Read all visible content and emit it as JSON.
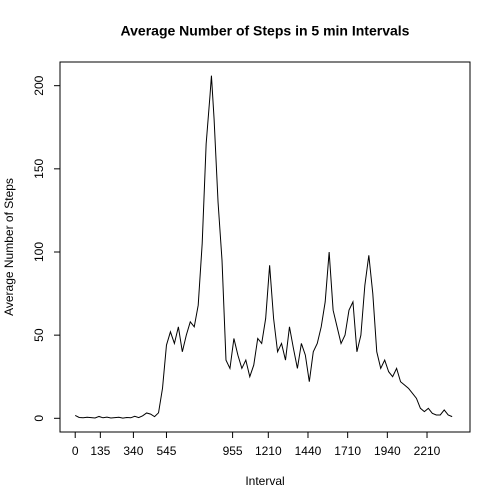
{
  "chart_data": {
    "type": "line",
    "title": "Average Number of Steps in 5 min Intervals",
    "x_label": "Interval",
    "y_label": "Average Number of Steps",
    "x": [
      0,
      3,
      6,
      9,
      12,
      15,
      18,
      21,
      24,
      27,
      30,
      33,
      36,
      39,
      42,
      45,
      48,
      51,
      54,
      57,
      60,
      63,
      66,
      69,
      72,
      75,
      78,
      81,
      84,
      87,
      90,
      93,
      96,
      99,
      102,
      103,
      105,
      108,
      111,
      114,
      117,
      120,
      123,
      126,
      129,
      132,
      135,
      138,
      141,
      144,
      147,
      150,
      153,
      156,
      159,
      162,
      165,
      168,
      171,
      174,
      177,
      180,
      183,
      186,
      189,
      192,
      195,
      198,
      201,
      204,
      207,
      210,
      213,
      216,
      219,
      222,
      225,
      228,
      231,
      234,
      237,
      240,
      243,
      246,
      249,
      252,
      255,
      258,
      261,
      264,
      267,
      270,
      273,
      276,
      279,
      282,
      285
    ],
    "series": [
      {
        "name": "Average Number of Steps",
        "color": "#000000",
        "values": [
          1.7,
          0.5,
          0.3,
          0.6,
          0.4,
          0.2,
          1.1,
          0.3,
          0.7,
          0.2,
          0.4,
          0.6,
          0.1,
          0.5,
          0.3,
          1.2,
          0.4,
          1.5,
          3.2,
          2.5,
          1.0,
          3.3,
          18,
          44,
          52,
          45,
          55,
          40,
          50,
          58,
          55,
          68,
          105,
          165,
          195,
          206,
          180,
          130,
          95,
          35,
          30,
          48,
          38,
          30,
          35,
          25,
          32,
          48,
          45,
          60,
          92,
          60,
          40,
          45,
          35,
          55,
          42,
          30,
          45,
          38,
          22,
          40,
          45,
          55,
          70,
          100,
          65,
          55,
          45,
          50,
          65,
          70,
          40,
          50,
          80,
          98,
          75,
          40,
          30,
          35,
          28,
          25,
          30,
          22,
          20,
          18,
          15,
          12,
          6,
          4,
          6,
          3,
          2,
          2,
          5,
          2,
          1
        ]
      }
    ],
    "xlim": [
      -11.5,
      298.5
    ],
    "xticks": [
      {
        "value": 0,
        "label": "0"
      },
      {
        "value": 19,
        "label": "135"
      },
      {
        "value": 44,
        "label": "340"
      },
      {
        "value": 69,
        "label": "545"
      },
      {
        "value": 119,
        "label": "955"
      },
      {
        "value": 146,
        "label": "1210"
      },
      {
        "value": 176,
        "label": "1440"
      },
      {
        "value": 206,
        "label": "1710"
      },
      {
        "value": 236,
        "label": "1940"
      },
      {
        "value": 266,
        "label": "2210"
      }
    ],
    "ylim": [
      -8.24,
      214.24
    ],
    "yticks": [
      0,
      50,
      100,
      150,
      200
    ]
  }
}
